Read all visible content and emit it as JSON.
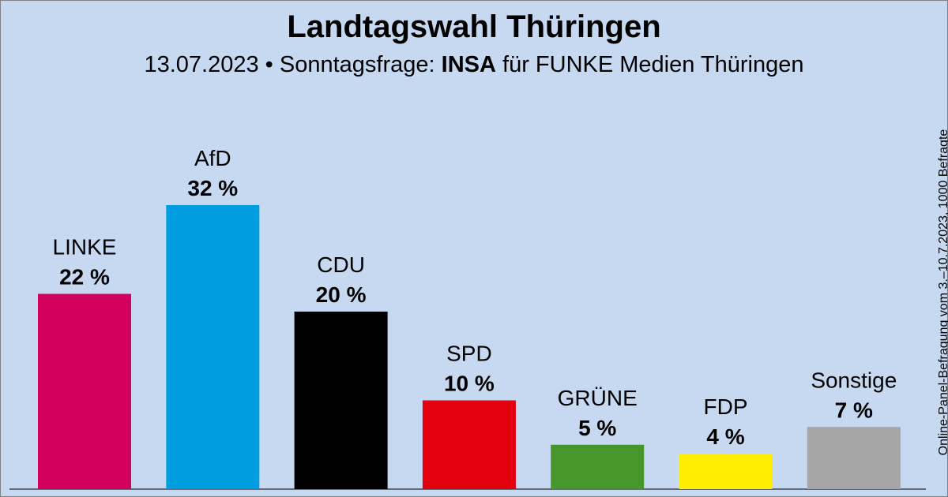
{
  "header": {
    "title": "Landtagswahl Thüringen",
    "subtitle_prefix": "13.07.2023 • Sonntagsfrage:",
    "subtitle_institute": "INSA",
    "subtitle_suffix": "für FUNKE Medien Thüringen"
  },
  "side_note": "Online-Panel-Befragung vom 3.–10.7.2023, 1000 Befragte",
  "chart_data": {
    "type": "bar",
    "title": "Landtagswahl Thüringen",
    "subtitle": "13.07.2023 • Sonntagsfrage: INSA für FUNKE Medien Thüringen",
    "xlabel": "",
    "ylabel": "",
    "ylim": [
      0,
      35
    ],
    "grid": false,
    "unit": "%",
    "categories": [
      "LINKE",
      "AfD",
      "CDU",
      "SPD",
      "GRÜNE",
      "FDP",
      "Sonstige"
    ],
    "values": [
      22,
      32,
      20,
      10,
      5,
      4,
      7
    ],
    "value_labels": [
      "22 %",
      "32 %",
      "20 %",
      "10 %",
      "5 %",
      "4 %",
      "7 %"
    ],
    "colors": [
      "#d2005f",
      "#009ee0",
      "#000000",
      "#e3000f",
      "#46962b",
      "#ffed00",
      "#a6a6a6"
    ]
  }
}
